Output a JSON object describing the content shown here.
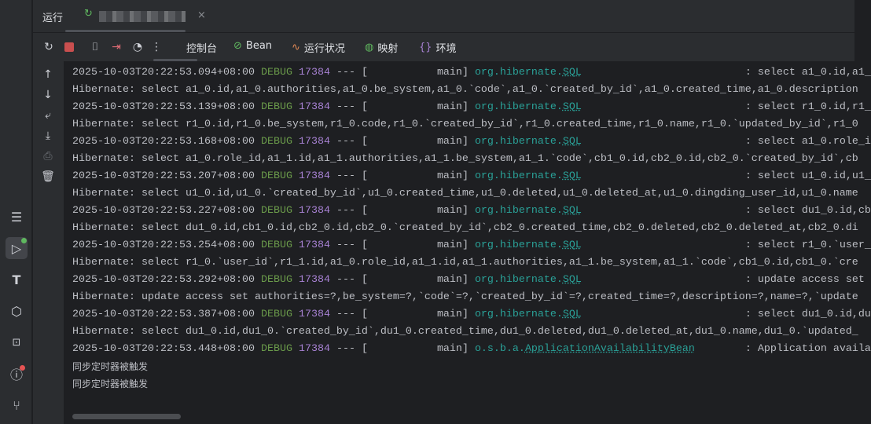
{
  "header": {
    "run_tab_label": "运行",
    "config_tab_close": "×",
    "toolbar_tabs": [
      {
        "label": "控制台",
        "icon": ""
      },
      {
        "label": "Bean",
        "icon": "bean-icon"
      },
      {
        "label": "运行状况",
        "icon": "health-icon"
      },
      {
        "label": "映射",
        "icon": "mapping-icon"
      },
      {
        "label": "环境",
        "icon": "environment-icon"
      }
    ]
  },
  "colors": {
    "debug": "#6a9a4a",
    "pid": "#a882d4",
    "logger": "#2aa198",
    "text": "#bcbec4"
  },
  "console": {
    "lines": [
      {
        "type": "log",
        "ts": "2025-10-03T20:22:53.094+08:00",
        "level": "DEBUG",
        "pid": "17384",
        "thread": "main",
        "logger": "org.hibernate.SQL",
        "msg": "select a1_0.id,a1_"
      },
      {
        "type": "text",
        "text": "Hibernate: select a1_0.id,a1_0.authorities,a1_0.be_system,a1_0.`code`,a1_0.`created_by_id`,a1_0.created_time,a1_0.description"
      },
      {
        "type": "log",
        "ts": "2025-10-03T20:22:53.139+08:00",
        "level": "DEBUG",
        "pid": "17384",
        "thread": "main",
        "logger": "org.hibernate.SQL",
        "msg": "select r1_0.id,r1_"
      },
      {
        "type": "text",
        "text": "Hibernate: select r1_0.id,r1_0.be_system,r1_0.code,r1_0.`created_by_id`,r1_0.created_time,r1_0.name,r1_0.`updated_by_id`,r1_0"
      },
      {
        "type": "log",
        "ts": "2025-10-03T20:22:53.168+08:00",
        "level": "DEBUG",
        "pid": "17384",
        "thread": "main",
        "logger": "org.hibernate.SQL",
        "msg": "select a1_0.role_i"
      },
      {
        "type": "text",
        "text": "Hibernate: select a1_0.role_id,a1_1.id,a1_1.authorities,a1_1.be_system,a1_1.`code`,cb1_0.id,cb2_0.id,cb2_0.`created_by_id`,cb"
      },
      {
        "type": "log",
        "ts": "2025-10-03T20:22:53.207+08:00",
        "level": "DEBUG",
        "pid": "17384",
        "thread": "main",
        "logger": "org.hibernate.SQL",
        "msg": "select u1_0.id,u1_"
      },
      {
        "type": "text",
        "text": "Hibernate: select u1_0.id,u1_0.`created_by_id`,u1_0.created_time,u1_0.deleted,u1_0.deleted_at,u1_0.dingding_user_id,u1_0.name"
      },
      {
        "type": "log",
        "ts": "2025-10-03T20:22:53.227+08:00",
        "level": "DEBUG",
        "pid": "17384",
        "thread": "main",
        "logger": "org.hibernate.SQL",
        "msg": "select du1_0.id,cb"
      },
      {
        "type": "text",
        "text": "Hibernate: select du1_0.id,cb1_0.id,cb2_0.id,cb2_0.`created_by_id`,cb2_0.created_time,cb2_0.deleted,cb2_0.deleted_at,cb2_0.di"
      },
      {
        "type": "log",
        "ts": "2025-10-03T20:22:53.254+08:00",
        "level": "DEBUG",
        "pid": "17384",
        "thread": "main",
        "logger": "org.hibernate.SQL",
        "msg": "select r1_0.`user_"
      },
      {
        "type": "text",
        "text": "Hibernate: select r1_0.`user_id`,r1_1.id,a1_0.role_id,a1_1.id,a1_1.authorities,a1_1.be_system,a1_1.`code`,cb1_0.id,cb1_0.`cre"
      },
      {
        "type": "log",
        "ts": "2025-10-03T20:22:53.292+08:00",
        "level": "DEBUG",
        "pid": "17384",
        "thread": "main",
        "logger": "org.hibernate.SQL",
        "msg": "update access set"
      },
      {
        "type": "text",
        "text": "Hibernate: update access set authorities=?,be_system=?,`code`=?,`created_by_id`=?,created_time=?,description=?,name=?,`update"
      },
      {
        "type": "log",
        "ts": "2025-10-03T20:22:53.387+08:00",
        "level": "DEBUG",
        "pid": "17384",
        "thread": "main",
        "logger": "org.hibernate.SQL",
        "msg": "select du1_0.id,du"
      },
      {
        "type": "text",
        "text": "Hibernate: select du1_0.id,du1_0.`created_by_id`,du1_0.created_time,du1_0.deleted,du1_0.deleted_at,du1_0.name,du1_0.`updated_"
      },
      {
        "type": "log",
        "ts": "2025-10-03T20:22:53.448+08:00",
        "level": "DEBUG",
        "pid": "17384",
        "thread": "main",
        "logger": "o.s.b.a.ApplicationAvailabilityBean",
        "msg": "Application availa"
      },
      {
        "type": "cn",
        "text": "同步定时器被触发"
      },
      {
        "type": "cn",
        "text": "同步定时器被触发"
      }
    ]
  }
}
